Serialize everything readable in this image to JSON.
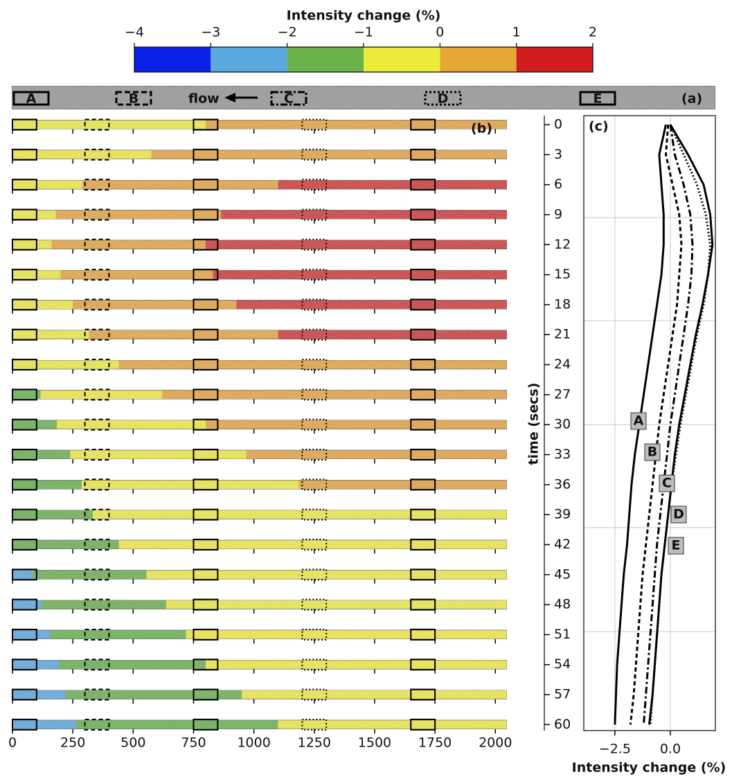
{
  "chart_data": [
    {
      "type": "colorbar",
      "title": "Intensity change (%)",
      "ticks": [
        {
          "value": -4,
          "label": "−4"
        },
        {
          "value": -3,
          "label": "−3"
        },
        {
          "value": -2,
          "label": "−2"
        },
        {
          "value": -1,
          "label": "−1"
        },
        0,
        1,
        2
      ],
      "colors": [
        "#0a22e8",
        "#5aaadf",
        "#6ab24a",
        "#eeea3c",
        "#e5a834",
        "#d01c1c"
      ]
    },
    {
      "type": "image",
      "label": "(a)",
      "annotation": "flow",
      "regions": [
        "A",
        "B",
        "C",
        "D",
        "E"
      ]
    },
    {
      "type": "strips",
      "label": "(b)",
      "xlim": [
        0,
        2048
      ],
      "xticks": [
        0,
        250,
        500,
        750,
        1000,
        1250,
        1500,
        1750,
        2000
      ],
      "regions": [
        {
          "x": [
            0,
            100
          ],
          "style": "solid"
        },
        {
          "x": [
            300,
            400
          ],
          "style": "dashed"
        },
        {
          "x": [
            750,
            850
          ],
          "style": "solid"
        },
        {
          "x": [
            1200,
            1300
          ],
          "style": "dotted"
        },
        {
          "x": [
            1650,
            1750
          ],
          "style": "solid"
        }
      ]
    },
    {
      "type": "line",
      "label": "(c)",
      "xlabel": "Intensity change (%)",
      "ylabel": "time (secs)",
      "x": [
        0,
        3,
        6,
        9,
        12,
        15,
        18,
        21,
        24,
        27,
        30,
        33,
        36,
        39,
        42,
        45,
        48,
        51,
        54,
        57,
        60
      ],
      "ylim": [
        -0.9,
        60.6
      ],
      "inverted_y": true,
      "yticks": [
        0,
        3,
        6,
        9,
        12,
        15,
        18,
        21,
        24,
        27,
        30,
        33,
        36,
        39,
        42,
        45,
        48,
        51,
        54,
        57,
        60
      ],
      "xlim": [
        -3.9,
        2.03
      ],
      "xticks": [
        {
          "value": -2.5,
          "label": "−2.5"
        },
        {
          "value": 0,
          "label": "0.0"
        }
      ],
      "grid_x": true,
      "grid_y": [
        9.3,
        19.6,
        30,
        40.3,
        50.7
      ],
      "series": [
        {
          "name": "A",
          "dash": "solid",
          "color": "#000000",
          "values": [
            -0.2,
            -0.5,
            -0.4,
            -0.3,
            -0.3,
            -0.4,
            -0.6,
            -0.8,
            -1.0,
            -1.2,
            -1.4,
            -1.6,
            -1.75,
            -1.85,
            -1.95,
            -2.1,
            -2.2,
            -2.3,
            -2.4,
            -2.45,
            -2.5
          ]
        },
        {
          "name": "B",
          "dash": "dashed",
          "color": "#000000",
          "values": [
            -0.1,
            -0.2,
            0.1,
            0.4,
            0.5,
            0.4,
            0.3,
            0.1,
            -0.1,
            -0.3,
            -0.5,
            -0.65,
            -0.8,
            -0.95,
            -1.1,
            -1.25,
            -1.35,
            -1.45,
            -1.55,
            -1.65,
            -1.8
          ]
        },
        {
          "name": "C",
          "dash": "dashdot",
          "color": "#000000",
          "values": [
            0,
            0.2,
            0.6,
            0.9,
            1.0,
            0.95,
            0.8,
            0.6,
            0.4,
            0.2,
            0,
            -0.15,
            -0.3,
            -0.45,
            -0.6,
            -0.7,
            -0.8,
            -0.9,
            -1.0,
            -1.1,
            -1.2
          ]
        },
        {
          "name": "D",
          "dash": "dotted",
          "color": "#000000",
          "values": [
            0,
            0.6,
            1.2,
            1.6,
            1.8,
            1.7,
            1.5,
            1.2,
            0.95,
            0.7,
            0.45,
            0.25,
            0.05,
            -0.1,
            -0.25,
            -0.4,
            -0.5,
            -0.6,
            -0.7,
            -0.8,
            -0.9
          ]
        },
        {
          "name": "E",
          "dash": "solid",
          "color": "#000000",
          "values": [
            0,
            0.8,
            1.5,
            1.8,
            1.9,
            1.7,
            1.45,
            1.15,
            0.9,
            0.65,
            0.4,
            0.2,
            0.05,
            -0.1,
            -0.25,
            -0.4,
            -0.5,
            -0.6,
            -0.7,
            -0.8,
            -0.95
          ]
        }
      ]
    }
  ]
}
